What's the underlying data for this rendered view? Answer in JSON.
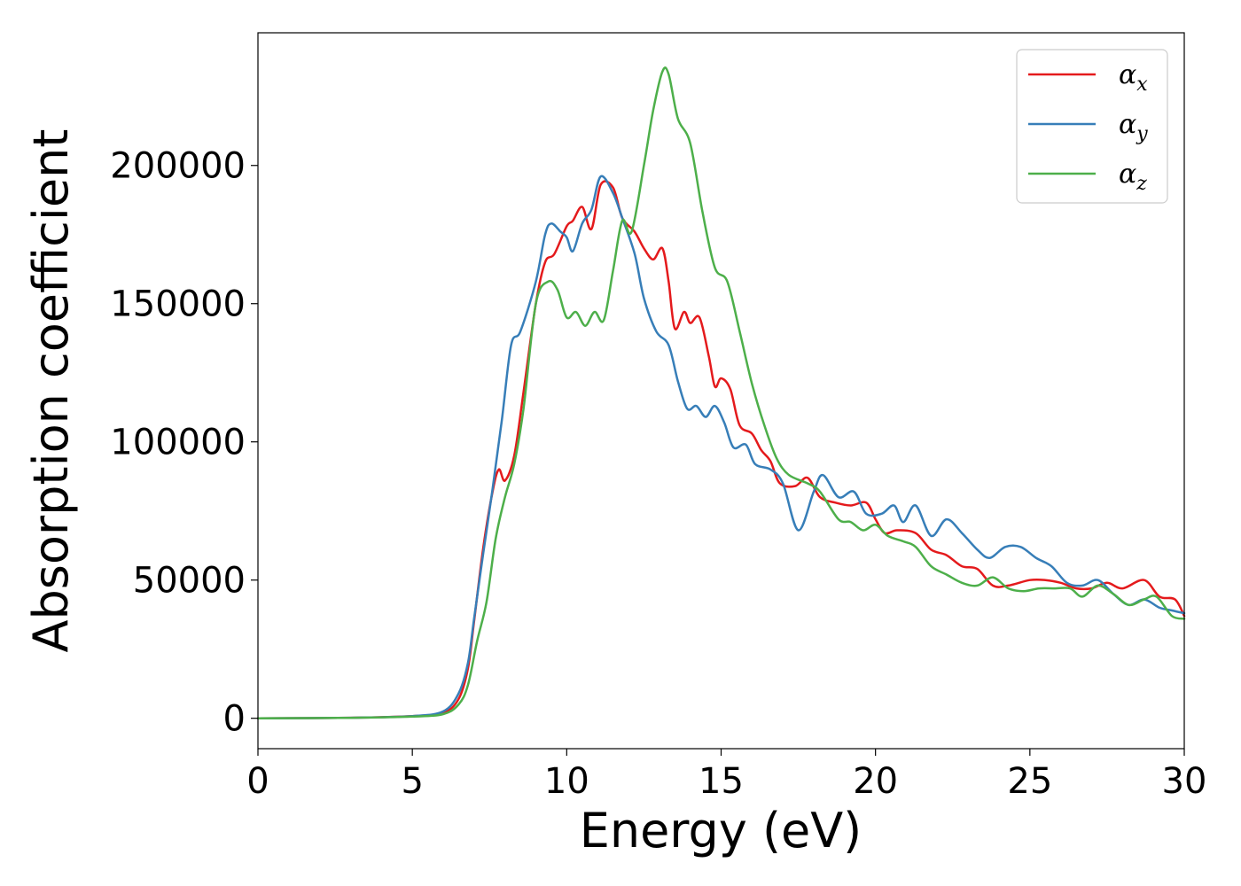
{
  "chart_data": {
    "type": "line",
    "title": "",
    "xlabel": "Energy (eV)",
    "ylabel": "Absorption coefficient",
    "xlim": [
      0,
      30
    ],
    "ylim": [
      -11000,
      248000
    ],
    "x_ticks": [
      0,
      5,
      10,
      15,
      20,
      25,
      30
    ],
    "y_ticks": [
      0,
      50000,
      100000,
      150000,
      200000
    ],
    "x_tick_labels": [
      "0",
      "5",
      "10",
      "15",
      "20",
      "25",
      "30"
    ],
    "y_tick_labels": [
      "0",
      "50000",
      "100000",
      "150000",
      "200000"
    ],
    "grid": false,
    "legend_position": "top-right",
    "series": [
      {
        "name": "α_x",
        "label_main": "α",
        "label_sub": "x",
        "color": "#e41a1c",
        "points": [
          [
            0,
            0
          ],
          [
            3,
            200
          ],
          [
            5,
            800
          ],
          [
            6,
            2000
          ],
          [
            6.5,
            7000
          ],
          [
            6.8,
            18000
          ],
          [
            7,
            35000
          ],
          [
            7.3,
            62000
          ],
          [
            7.6,
            82000
          ],
          [
            7.8,
            90000
          ],
          [
            8,
            86000
          ],
          [
            8.3,
            95000
          ],
          [
            8.6,
            118000
          ],
          [
            9,
            150000
          ],
          [
            9.3,
            165000
          ],
          [
            9.6,
            168000
          ],
          [
            10,
            178000
          ],
          [
            10.2,
            180000
          ],
          [
            10.5,
            185000
          ],
          [
            10.8,
            177000
          ],
          [
            11.1,
            193000
          ],
          [
            11.5,
            192000
          ],
          [
            11.8,
            181000
          ],
          [
            12.2,
            176000
          ],
          [
            12.5,
            170000
          ],
          [
            12.8,
            166000
          ],
          [
            13.1,
            170000
          ],
          [
            13.3,
            158000
          ],
          [
            13.5,
            141000
          ],
          [
            13.8,
            147000
          ],
          [
            14,
            143000
          ],
          [
            14.3,
            145000
          ],
          [
            14.6,
            131000
          ],
          [
            14.8,
            120000
          ],
          [
            15,
            123000
          ],
          [
            15.3,
            119000
          ],
          [
            15.6,
            106000
          ],
          [
            16,
            103000
          ],
          [
            16.3,
            97000
          ],
          [
            16.6,
            93000
          ],
          [
            16.9,
            85000
          ],
          [
            17.4,
            84000
          ],
          [
            17.8,
            87000
          ],
          [
            18.2,
            80000
          ],
          [
            18.7,
            78000
          ],
          [
            19.2,
            77000
          ],
          [
            19.7,
            78000
          ],
          [
            20,
            72000
          ],
          [
            20.3,
            67000
          ],
          [
            20.7,
            68000
          ],
          [
            21.3,
            67000
          ],
          [
            21.8,
            61000
          ],
          [
            22.3,
            59000
          ],
          [
            22.8,
            55000
          ],
          [
            23.3,
            54000
          ],
          [
            23.8,
            48000
          ],
          [
            24.3,
            48000
          ],
          [
            25,
            50000
          ],
          [
            25.5,
            50000
          ],
          [
            26,
            49000
          ],
          [
            26.5,
            47000
          ],
          [
            27,
            47000
          ],
          [
            27.5,
            49000
          ],
          [
            28,
            47000
          ],
          [
            28.7,
            50000
          ],
          [
            29.2,
            44000
          ],
          [
            29.7,
            43000
          ],
          [
            30,
            37000
          ]
        ]
      },
      {
        "name": "α_y",
        "label_main": "α",
        "label_sub": "y",
        "color": "#377eb8",
        "points": [
          [
            0,
            0
          ],
          [
            3,
            200
          ],
          [
            5,
            800
          ],
          [
            6,
            2500
          ],
          [
            6.5,
            9000
          ],
          [
            6.8,
            20000
          ],
          [
            7,
            36000
          ],
          [
            7.3,
            60000
          ],
          [
            7.6,
            83000
          ],
          [
            7.9,
            108000
          ],
          [
            8.2,
            135000
          ],
          [
            8.5,
            140000
          ],
          [
            9,
            158000
          ],
          [
            9.3,
            175000
          ],
          [
            9.5,
            179000
          ],
          [
            9.8,
            176000
          ],
          [
            10,
            174000
          ],
          [
            10.2,
            169000
          ],
          [
            10.5,
            179000
          ],
          [
            10.8,
            184000
          ],
          [
            11.1,
            196000
          ],
          [
            11.5,
            190000
          ],
          [
            11.8,
            181000
          ],
          [
            12.2,
            168000
          ],
          [
            12.5,
            152000
          ],
          [
            12.9,
            140000
          ],
          [
            13.3,
            135000
          ],
          [
            13.6,
            122000
          ],
          [
            13.9,
            112000
          ],
          [
            14.2,
            113000
          ],
          [
            14.5,
            109000
          ],
          [
            14.8,
            113000
          ],
          [
            15.1,
            107000
          ],
          [
            15.4,
            98000
          ],
          [
            15.8,
            99000
          ],
          [
            16.1,
            92000
          ],
          [
            16.6,
            90000
          ],
          [
            17,
            85000
          ],
          [
            17.5,
            68000
          ],
          [
            18,
            82000
          ],
          [
            18.3,
            88000
          ],
          [
            18.8,
            80000
          ],
          [
            19.3,
            82000
          ],
          [
            19.7,
            74000
          ],
          [
            20.2,
            74000
          ],
          [
            20.6,
            77000
          ],
          [
            20.9,
            71000
          ],
          [
            21.3,
            77000
          ],
          [
            21.8,
            66000
          ],
          [
            22.3,
            72000
          ],
          [
            22.8,
            67000
          ],
          [
            23.3,
            61000
          ],
          [
            23.7,
            58000
          ],
          [
            24.2,
            62000
          ],
          [
            24.7,
            62000
          ],
          [
            25.2,
            58000
          ],
          [
            25.7,
            55000
          ],
          [
            26.2,
            49000
          ],
          [
            26.7,
            48000
          ],
          [
            27.2,
            50000
          ],
          [
            27.7,
            45000
          ],
          [
            28.2,
            41000
          ],
          [
            28.7,
            43000
          ],
          [
            29.2,
            40000
          ],
          [
            29.6,
            39000
          ],
          [
            30,
            38000
          ]
        ]
      },
      {
        "name": "α_z",
        "label_main": "α",
        "label_sub": "z",
        "color": "#4daf4a",
        "points": [
          [
            0,
            0
          ],
          [
            3,
            150
          ],
          [
            5,
            600
          ],
          [
            6,
            1500
          ],
          [
            6.5,
            5000
          ],
          [
            6.8,
            12000
          ],
          [
            7.1,
            28000
          ],
          [
            7.4,
            42000
          ],
          [
            7.7,
            65000
          ],
          [
            8,
            80000
          ],
          [
            8.3,
            92000
          ],
          [
            8.6,
            112000
          ],
          [
            9,
            150000
          ],
          [
            9.4,
            158000
          ],
          [
            9.7,
            155000
          ],
          [
            10,
            145000
          ],
          [
            10.3,
            147000
          ],
          [
            10.6,
            142000
          ],
          [
            10.9,
            147000
          ],
          [
            11.2,
            144000
          ],
          [
            11.5,
            162000
          ],
          [
            11.8,
            180000
          ],
          [
            12.1,
            176000
          ],
          [
            12.5,
            200000
          ],
          [
            12.8,
            220000
          ],
          [
            13.1,
            234000
          ],
          [
            13.3,
            233000
          ],
          [
            13.6,
            217000
          ],
          [
            14,
            208000
          ],
          [
            14.4,
            183000
          ],
          [
            14.8,
            163000
          ],
          [
            15.2,
            158000
          ],
          [
            15.6,
            140000
          ],
          [
            16,
            121000
          ],
          [
            16.4,
            106000
          ],
          [
            16.8,
            94000
          ],
          [
            17.2,
            88000
          ],
          [
            17.8,
            85000
          ],
          [
            18.2,
            82000
          ],
          [
            18.8,
            72000
          ],
          [
            19.2,
            71000
          ],
          [
            19.6,
            68000
          ],
          [
            20,
            70000
          ],
          [
            20.4,
            66000
          ],
          [
            20.9,
            64000
          ],
          [
            21.3,
            62000
          ],
          [
            21.8,
            55000
          ],
          [
            22.3,
            52000
          ],
          [
            22.8,
            49000
          ],
          [
            23.3,
            48000
          ],
          [
            23.8,
            51000
          ],
          [
            24.3,
            47000
          ],
          [
            24.8,
            46000
          ],
          [
            25.3,
            47000
          ],
          [
            25.8,
            47000
          ],
          [
            26.3,
            47000
          ],
          [
            26.7,
            44000
          ],
          [
            27.2,
            48000
          ],
          [
            27.7,
            45000
          ],
          [
            28.2,
            41000
          ],
          [
            28.7,
            43000
          ],
          [
            29.1,
            44000
          ],
          [
            29.6,
            37000
          ],
          [
            30,
            36000
          ]
        ]
      }
    ]
  }
}
